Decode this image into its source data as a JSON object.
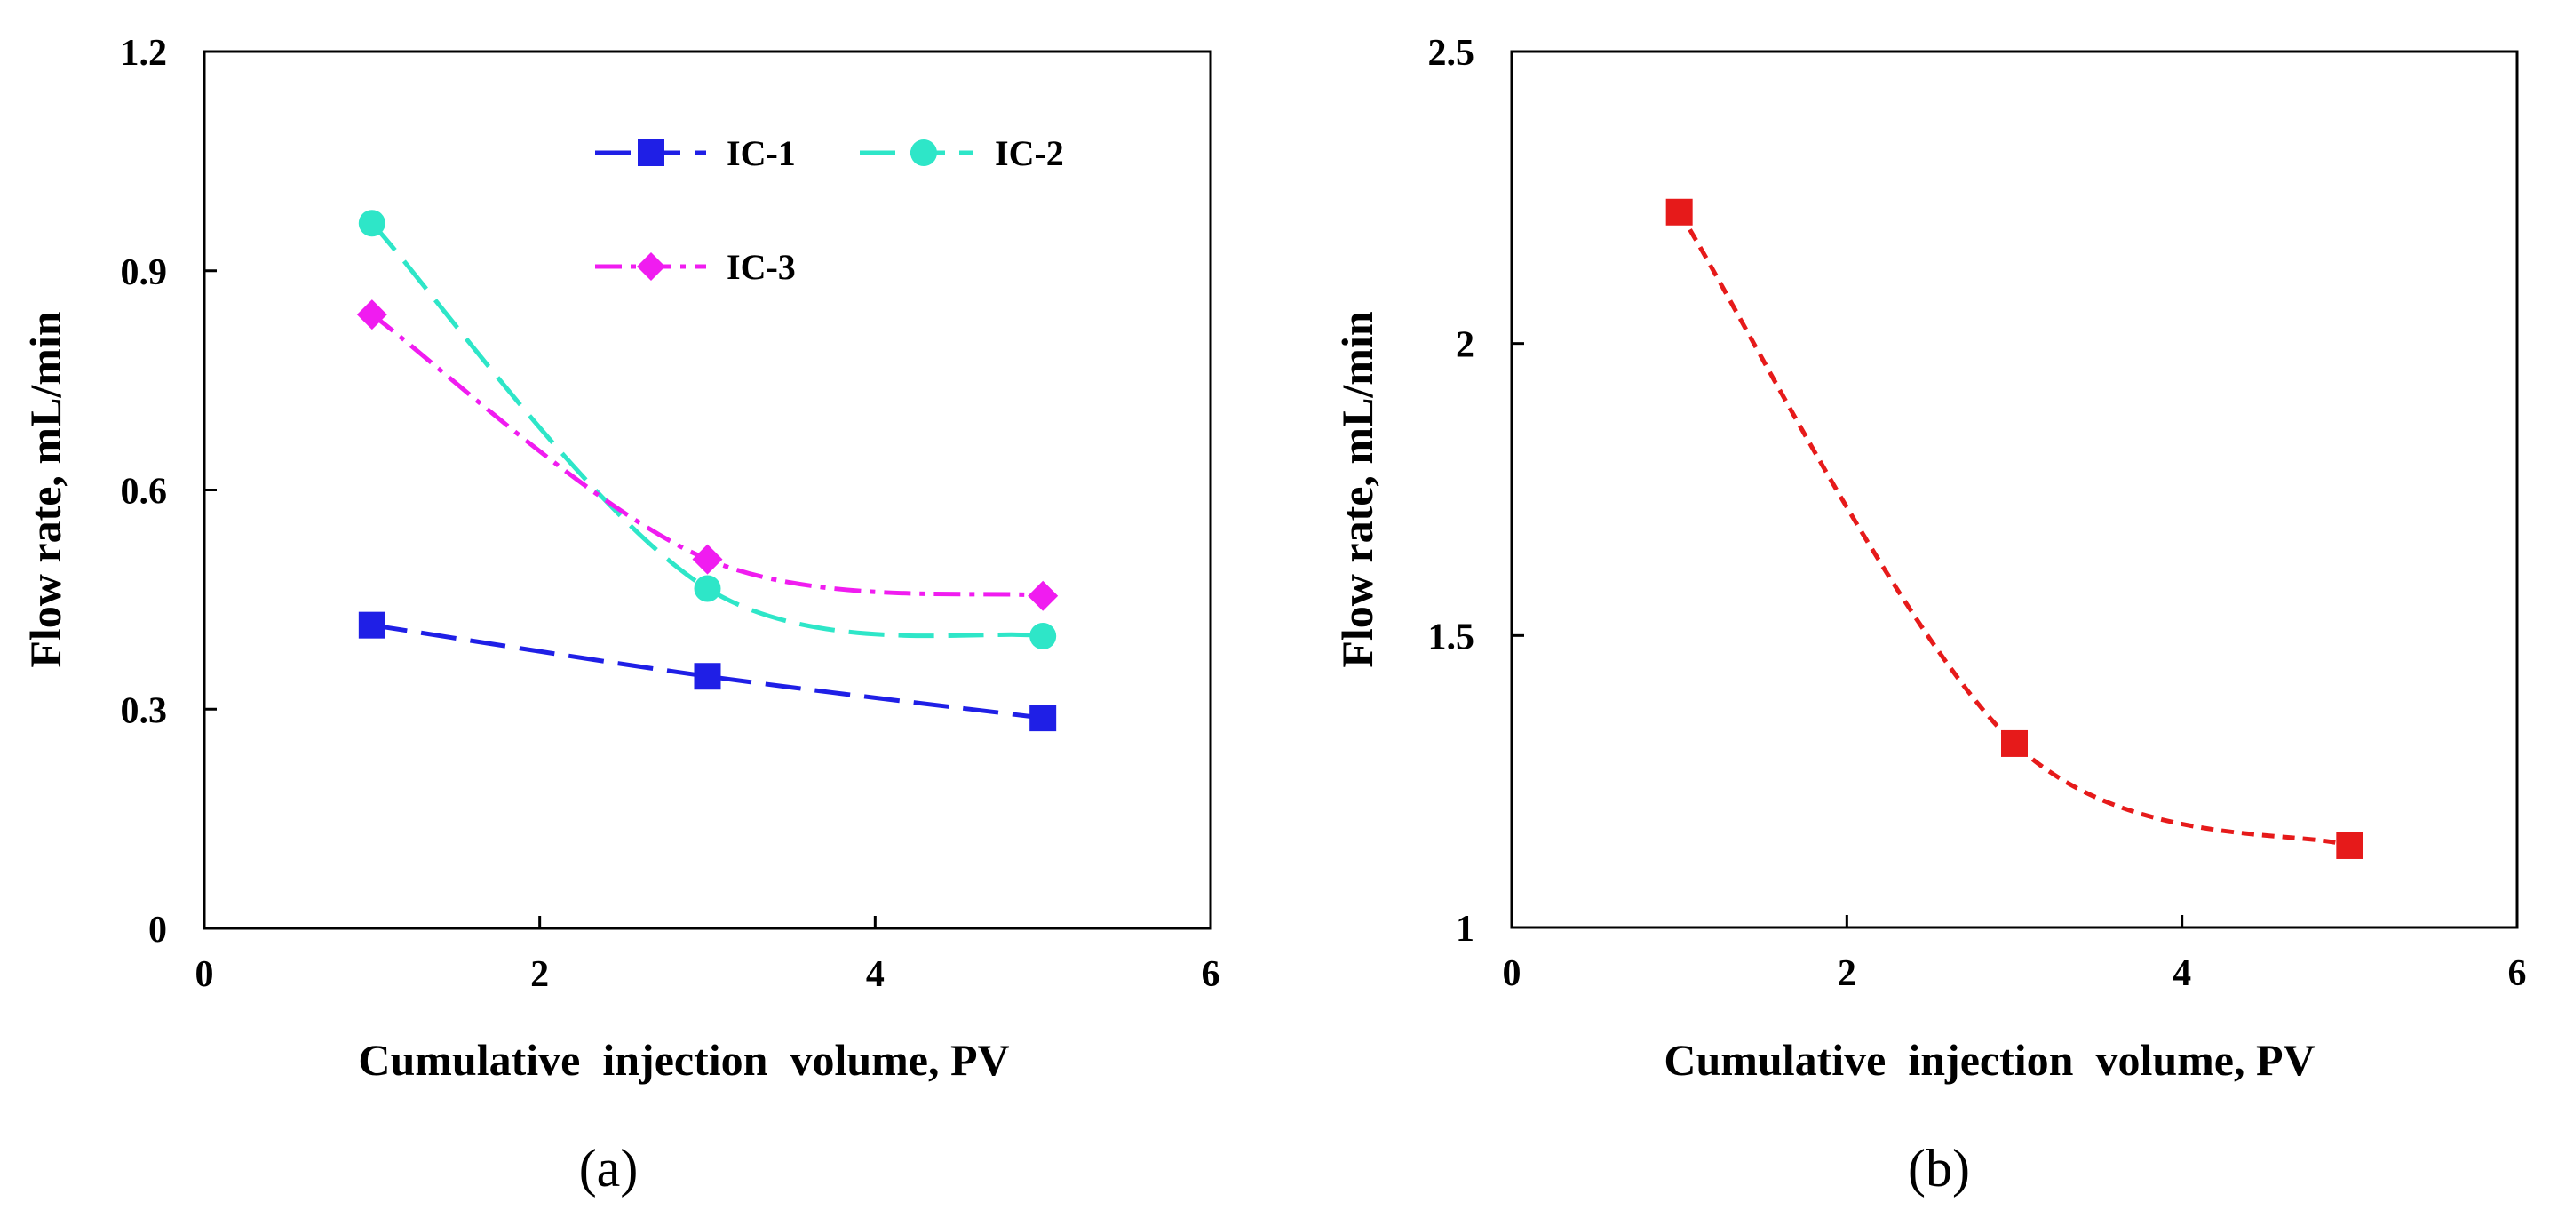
{
  "chart_data": [
    {
      "type": "line",
      "panel_label": "(a)",
      "xlabel": "Cumulative  injection  volume, PV",
      "ylabel": "Flow rate, mL/min",
      "xlim": [
        0,
        6
      ],
      "ylim": [
        0,
        1.2
      ],
      "xticks": [
        0,
        2,
        4,
        6
      ],
      "xtick_labels": [
        "0",
        "2",
        "4",
        "6"
      ],
      "yticks": [
        0,
        0.3,
        0.6,
        0.9,
        1.2
      ],
      "ytick_labels": [
        "0",
        "0.3",
        "0.6",
        "0.9",
        "1.2"
      ],
      "grid": false,
      "legend_position": "top-right",
      "series": [
        {
          "name": "IC-1",
          "x": [
            1,
            3,
            5
          ],
          "values": [
            0.415,
            0.345,
            0.288
          ],
          "color": "#1f1fe6",
          "marker": "square",
          "dash": "long-dash"
        },
        {
          "name": "IC-2",
          "x": [
            1,
            3,
            5
          ],
          "values": [
            0.965,
            0.465,
            0.4
          ],
          "color": "#2ee6c8",
          "marker": "circle",
          "dash": "long-dash"
        },
        {
          "name": "IC-3",
          "x": [
            1,
            3,
            5
          ],
          "values": [
            0.84,
            0.505,
            0.455
          ],
          "color": "#f01cf0",
          "marker": "diamond",
          "dash": "dash-dot"
        }
      ]
    },
    {
      "type": "line",
      "panel_label": "(b)",
      "xlabel": "Cumulative  injection  volume, PV",
      "ylabel": "Flow rate, mL/min",
      "xlim": [
        0,
        6
      ],
      "ylim": [
        1,
        2.5
      ],
      "xticks": [
        0,
        2,
        4,
        6
      ],
      "xtick_labels": [
        "0",
        "2",
        "4",
        "6"
      ],
      "yticks": [
        1,
        1.5,
        2,
        2.5
      ],
      "ytick_labels": [
        "1",
        "1.5",
        "2",
        "2.5"
      ],
      "grid": false,
      "series": [
        {
          "name": "",
          "x": [
            1,
            3,
            5
          ],
          "values": [
            2.225,
            1.315,
            1.14
          ],
          "color": "#e61a1a",
          "marker": "square",
          "dash": "short-dash"
        }
      ]
    }
  ]
}
